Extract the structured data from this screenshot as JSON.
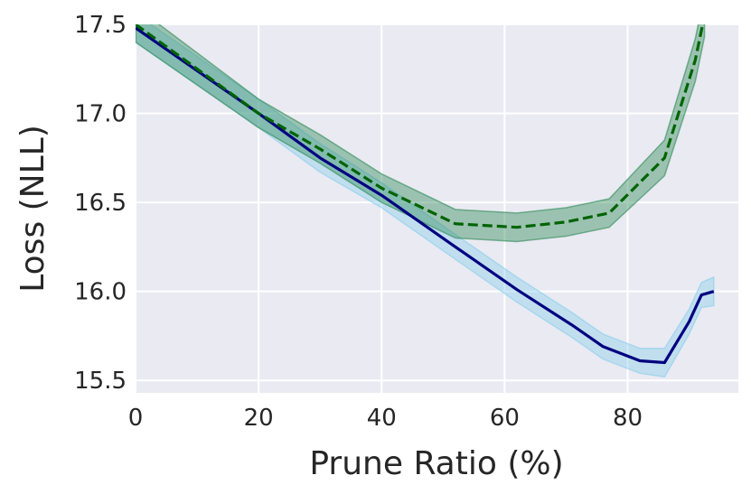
{
  "chart_data": {
    "type": "line",
    "title": "",
    "xlabel": "Prune Ratio (%)",
    "ylabel": "Loss (NLL)",
    "xlim": [
      0,
      98
    ],
    "ylim": [
      15.43,
      17.5
    ],
    "xticks": [
      "0",
      "20",
      "40",
      "60",
      "80"
    ],
    "yticks": [
      "15.5",
      "16.0",
      "16.5",
      "17.0",
      "17.5"
    ],
    "grid": true,
    "background": "#eaeaf2",
    "series": [
      {
        "name": "",
        "style": "solid",
        "color": "#000080",
        "band_color": "#87ceeb",
        "points": [
          [
            0,
            17.48
          ],
          [
            20,
            17.0
          ],
          [
            30,
            16.75
          ],
          [
            40,
            16.54
          ],
          [
            52,
            16.25
          ],
          [
            62,
            16.01
          ],
          [
            71,
            15.81
          ],
          [
            76,
            15.69
          ],
          [
            82,
            15.61
          ],
          [
            86,
            15.6
          ],
          [
            90,
            15.83
          ],
          [
            92,
            15.98
          ],
          [
            94,
            16.0
          ]
        ],
        "band": [
          0.08,
          0.08,
          0.08,
          0.07,
          0.07,
          0.07,
          0.07,
          0.07,
          0.07,
          0.08,
          0.07,
          0.07,
          0.08
        ]
      },
      {
        "name": "",
        "style": "dashed",
        "color": "#006400",
        "band_color": "#2e8b57",
        "points": [
          [
            0,
            17.5
          ],
          [
            20,
            17.0
          ],
          [
            30,
            16.8
          ],
          [
            40,
            16.58
          ],
          [
            52,
            16.38
          ],
          [
            62,
            16.36
          ],
          [
            70,
            16.39
          ],
          [
            77,
            16.44
          ],
          [
            86,
            16.75
          ],
          [
            91,
            17.3
          ],
          [
            92.5,
            17.55
          ]
        ],
        "band": [
          0.1,
          0.08,
          0.08,
          0.08,
          0.08,
          0.08,
          0.08,
          0.08,
          0.1,
          0.12,
          0.12
        ]
      }
    ]
  }
}
